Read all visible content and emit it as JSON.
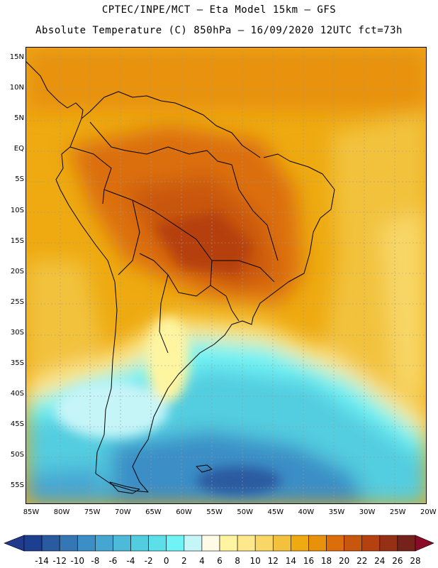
{
  "header": {
    "line1": "CPTEC/INPE/MCT —  Eta Model 15km — GFS",
    "line2": "Absolute Temperature (C) 850hPa — 16/09/2020 12UTC fct=73h"
  },
  "map": {
    "latitude_labels": [
      "15N",
      "10N",
      "5N",
      "EQ",
      "5S",
      "10S",
      "15S",
      "20S",
      "25S",
      "30S",
      "35S",
      "40S",
      "45S",
      "50S",
      "55S"
    ],
    "longitude_labels": [
      "85W",
      "80W",
      "75W",
      "70W",
      "65W",
      "60W",
      "55W",
      "50W",
      "45W",
      "40W",
      "35W",
      "30W",
      "25W",
      "20W"
    ],
    "field": "Absolute Temperature (C) at 850hPa",
    "region": "South America"
  },
  "colorbar": {
    "labels": [
      "-14",
      "-12",
      "-10",
      "-8",
      "-6",
      "-4",
      "-2",
      "0",
      "2",
      "4",
      "6",
      "8",
      "10",
      "12",
      "14",
      "16",
      "18",
      "20",
      "22",
      "24",
      "26",
      "28"
    ],
    "colors": [
      "#1d3f8f",
      "#2a5aa0",
      "#3577b4",
      "#3b8ec6",
      "#46a6d2",
      "#4cbad8",
      "#52cde0",
      "#5cdfe8",
      "#6ff3f5",
      "#c6f5f8",
      "#fffbe6",
      "#fff5a0",
      "#fde88c",
      "#f8d766",
      "#f2c23c",
      "#eeaa10",
      "#e8920c",
      "#db6e0a",
      "#c9560e",
      "#b54010",
      "#963015",
      "#75221a",
      "#8b0a28"
    ],
    "lower_triangle_color": "#223a8c",
    "upper_triangle_color": "#8b0a28"
  }
}
